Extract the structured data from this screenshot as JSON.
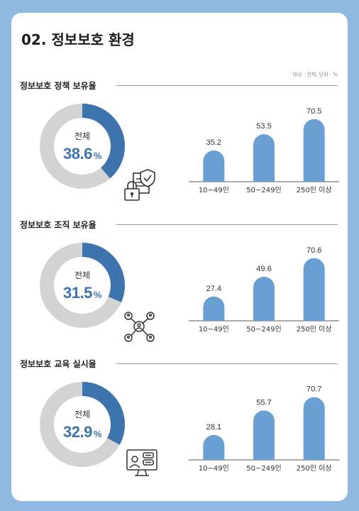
{
  "page": {
    "title": "02. 정보보호 환경",
    "unit_note": "대상 : 전체, 단위 : %"
  },
  "colors": {
    "accent": "#3d74ae",
    "bar": "#6a9fd4",
    "donut_track": "#d3d3d3",
    "background": "#8fb9e0"
  },
  "sections": [
    {
      "title": "정보보호 정책 보유율",
      "donut_caption": "전체",
      "total_value": "38.6",
      "percent_sign": "%",
      "icon": "lock-document-shield-icon"
    },
    {
      "title": "정보보호 조직 보유율",
      "donut_caption": "전체",
      "total_value": "31.5",
      "percent_sign": "%",
      "icon": "organization-network-icon"
    },
    {
      "title": "정보보호 교육 실시율",
      "donut_caption": "전체",
      "total_value": "32.9",
      "percent_sign": "%",
      "icon": "online-training-icon"
    }
  ],
  "chart_data": [
    {
      "type": "pie",
      "title": "정보보호 정책 보유율",
      "center_label": "전체",
      "values": [
        38.6,
        61.4
      ],
      "unit": "%"
    },
    {
      "type": "bar",
      "categories": [
        "10~49인",
        "50~249인",
        "250인 이상"
      ],
      "values": [
        35.2,
        53.5,
        70.5
      ],
      "ylim": [
        0,
        80
      ],
      "grid": false
    },
    {
      "type": "pie",
      "title": "정보보호 조직 보유율",
      "center_label": "전체",
      "values": [
        31.5,
        68.5
      ],
      "unit": "%"
    },
    {
      "type": "bar",
      "categories": [
        "10~49인",
        "50~249인",
        "250인 이상"
      ],
      "values": [
        27.4,
        49.6,
        70.6
      ],
      "ylim": [
        0,
        80
      ],
      "grid": false
    },
    {
      "type": "pie",
      "title": "정보보호 교육 실시율",
      "center_label": "전체",
      "values": [
        32.9,
        67.1
      ],
      "unit": "%"
    },
    {
      "type": "bar",
      "categories": [
        "10~49인",
        "50~249인",
        "250인 이상"
      ],
      "values": [
        28.1,
        55.7,
        70.7
      ],
      "ylim": [
        0,
        80
      ],
      "grid": false
    }
  ]
}
